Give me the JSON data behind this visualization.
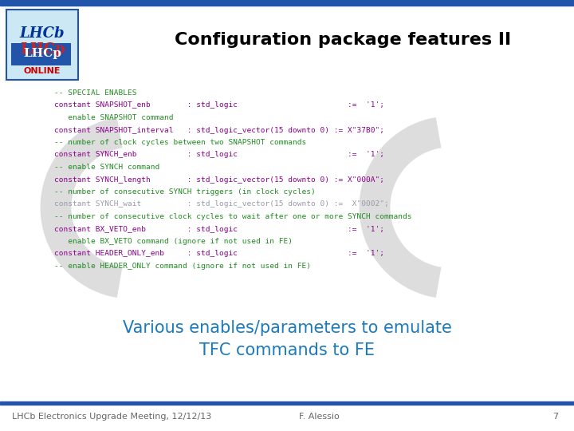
{
  "title": "Configuration package features II",
  "title_fontsize": 16,
  "title_color": "#000000",
  "bg_color": "#ffffff",
  "bar_color": "#2255aa",
  "subtitle_color": "#1a7abf",
  "subtitle_text": "Various enables/parameters to emulate\nTFC commands to FE",
  "subtitle_fontsize": 15,
  "footer_left": "LHCb Electronics Upgrade Meeting, 12/12/13",
  "footer_right": "F. Alessio",
  "footer_page": "7",
  "footer_fontsize": 8,
  "code_lines": [
    {
      "text": "-- SPECIAL ENABLES",
      "color": "#228B22"
    },
    {
      "text": "constant SNAPSHOT_enb        : std_logic                        :=  '1';",
      "color": "#8B008B"
    },
    {
      "text": "   enable SNAPSHOT command",
      "color": "#228B22"
    },
    {
      "text": "constant SNAPSHOT_interval   : std_logic_vector(15 downto 0) := X\"37B0\";",
      "color": "#8B008B"
    },
    {
      "text": "-- number of clock cycles between two SNAPSHOT commands",
      "color": "#228B22"
    },
    {
      "text": "constant SYNCH_enb           : std_logic                        :=  '1';",
      "color": "#8B008B"
    },
    {
      "text": "-- enable SYNCH command",
      "color": "#228B22"
    },
    {
      "text": "constant SYNCH_length        : std_logic_vector(15 downto 0) := X\"000A\";",
      "color": "#8B008B"
    },
    {
      "text": "-- number of consecutive SYNCH triggers (in clock cycles)",
      "color": "#228B22"
    },
    {
      "text": "constant SYNCH_wait          : std_logic_vector(15 downto 0) :=  X\"0002\";",
      "color": "#9999aa"
    },
    {
      "text": "-- number of consecutive clock cycles to wait after one or more SYNCH commands",
      "color": "#228B22"
    },
    {
      "text": "constant BX_VETO_enb         : std_logic                        :=  '1';",
      "color": "#8B008B"
    },
    {
      "text": "   enable BX_VETO command (ignore if not used in FE)",
      "color": "#228B22"
    },
    {
      "text": "constant HEADER_ONLY_enb     : std_logic                        :=  '1';",
      "color": "#8B008B"
    },
    {
      "text": "-- enable HEADER_ONLY command (ignore if not used in FE)",
      "color": "#228B22"
    }
  ],
  "code_fontsize": 6.8,
  "watermark_color": "#d8d8d8",
  "lhcb_text_color": "#003399",
  "online_text_color": "#cc0000",
  "logo_bg": "#cce8f4",
  "logo_border": "#2255aa"
}
